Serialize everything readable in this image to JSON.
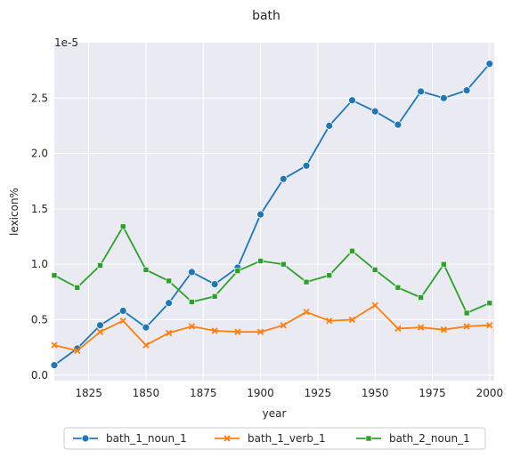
{
  "chart_data": {
    "type": "line",
    "title": "bath",
    "xlabel": "year",
    "ylabel": "lexicon%",
    "y_offset_label": "1e-5",
    "xlim": [
      1810,
      2002
    ],
    "ylim": [
      -0.05,
      3.0
    ],
    "x_ticks": [
      1825,
      1850,
      1875,
      1900,
      1925,
      1950,
      1975,
      2000
    ],
    "y_ticks": [
      0.0,
      0.5,
      1.0,
      1.5,
      2.0,
      2.5
    ],
    "y_tick_labels": [
      "0.0",
      "0.5",
      "1.0",
      "1.5",
      "2.0",
      "2.5"
    ],
    "grid": true,
    "legend_position": "bottom",
    "x": [
      1810,
      1820,
      1830,
      1840,
      1850,
      1860,
      1870,
      1880,
      1890,
      1900,
      1910,
      1920,
      1930,
      1940,
      1950,
      1960,
      1970,
      1980,
      1990,
      2000
    ],
    "series": [
      {
        "name": "bath_1_noun_1",
        "color": "#1f77b4",
        "marker": "circle",
        "values": [
          0.09,
          0.24,
          0.45,
          0.58,
          0.43,
          0.65,
          0.93,
          0.82,
          0.97,
          1.45,
          1.77,
          1.89,
          2.25,
          2.48,
          2.38,
          2.26,
          2.56,
          2.5,
          2.57,
          2.81
        ]
      },
      {
        "name": "bath_1_verb_1",
        "color": "#ff7f0e",
        "marker": "x",
        "values": [
          0.27,
          0.22,
          0.39,
          0.49,
          0.27,
          0.38,
          0.44,
          0.4,
          0.39,
          0.39,
          0.45,
          0.57,
          0.49,
          0.5,
          0.63,
          0.42,
          0.43,
          0.41,
          0.44,
          0.45
        ]
      },
      {
        "name": "bath_2_noun_1",
        "color": "#2ca02c",
        "marker": "square",
        "values": [
          0.9,
          0.79,
          0.99,
          1.34,
          0.95,
          0.85,
          0.66,
          0.71,
          0.94,
          1.03,
          1.0,
          0.84,
          0.9,
          1.12,
          0.95,
          0.79,
          0.7,
          1.0,
          0.56,
          0.65
        ]
      }
    ]
  }
}
